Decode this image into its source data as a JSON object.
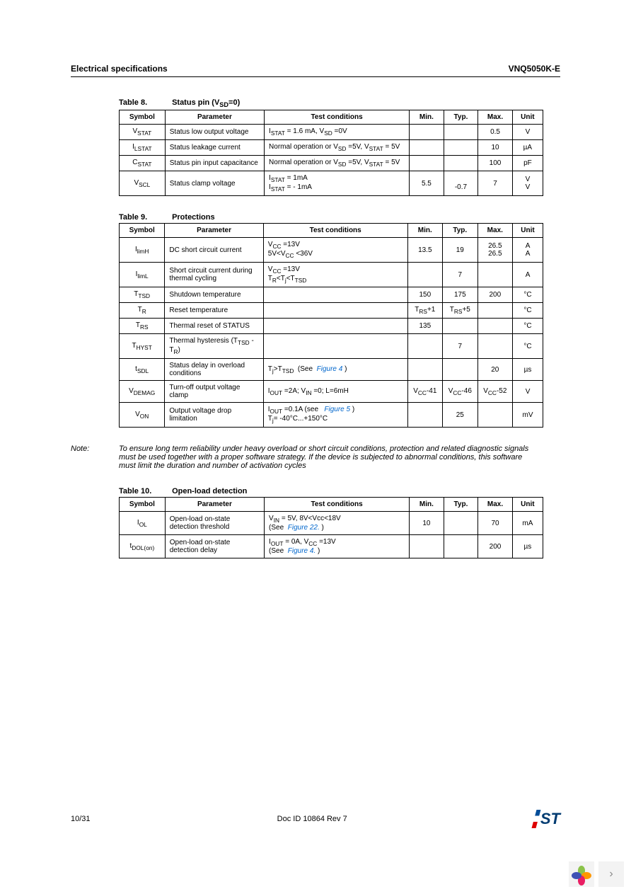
{
  "header": {
    "left": "Electrical specifications",
    "right": "VNQ5050K-E"
  },
  "tables": {
    "t8": {
      "num": "Table 8.",
      "title_html": "Status pin (V<sub>SD</sub>=0)",
      "headers": [
        "Symbol",
        "Parameter",
        "Test conditions",
        "Min.",
        "Typ.",
        "Max.",
        "Unit"
      ],
      "rows": [
        {
          "sym": "V<sub>STAT</sub>",
          "param": "Status low output voltage",
          "cond": "I<sub>STAT</sub> = 1.6 mA, V<sub>SD</sub> =0V",
          "min": "",
          "typ": "",
          "max": "0.5",
          "unit": "V"
        },
        {
          "sym": "I<sub>LSTAT</sub>",
          "param": "Status leakage current",
          "cond": "Normal operation or V<sub>SD</sub> =5V, V<sub>STAT</sub> = 5V",
          "min": "",
          "typ": "",
          "max": "10",
          "unit": "µA"
        },
        {
          "sym": "C<sub>STAT</sub>",
          "param": "Status pin input capacitance",
          "cond": "Normal operation or V<sub>SD</sub> =5V, V<sub>STAT</sub> = 5V",
          "min": "",
          "typ": "",
          "max": "100",
          "unit": "pF"
        },
        {
          "sym": "V<sub>SCL</sub>",
          "param": "Status clamp voltage",
          "cond": "I<sub>STAT</sub> = 1mA<br>I<sub>STAT</sub> = - 1mA",
          "min": "5.5",
          "typ": "<br>-0.7",
          "max": "7",
          "unit": "V<br>V"
        }
      ]
    },
    "t9": {
      "num": "Table 9.",
      "title": "Protections",
      "headers": [
        "Symbol",
        "Parameter",
        "Test conditions",
        "Min.",
        "Typ.",
        "Max.",
        "Unit"
      ],
      "rows": [
        {
          "sym": "I<sub>limH</sub>",
          "param": "DC short circuit current",
          "cond": "V<sub>CC</sub> =13V<br>5V&lt;V<sub>CC</sub> &lt;36V",
          "min": "13.5",
          "typ": "19",
          "max": "26.5<br>26.5",
          "unit": "A<br>A"
        },
        {
          "sym": "I<sub>limL</sub>",
          "param": "Short circuit current during thermal cycling",
          "cond": "V<sub>CC</sub> =13V<br>T<sub>R</sub>&lt;T<sub>j</sub>&lt;T<sub>TSD</sub>",
          "min": "",
          "typ": "7",
          "max": "",
          "unit": "A"
        },
        {
          "sym": "T<sub>TSD</sub>",
          "param": "Shutdown temperature",
          "cond": "",
          "min": "150",
          "typ": "175",
          "max": "200",
          "unit": "°C"
        },
        {
          "sym": "T<sub>R</sub>",
          "param": "Reset temperature",
          "cond": "",
          "min": "T<sub>RS</sub>+1",
          "typ": "T<sub>RS</sub>+5",
          "max": "",
          "unit": "°C"
        },
        {
          "sym": "T<sub>RS</sub>",
          "param": "Thermal reset of STATUS",
          "cond": "",
          "min": "135",
          "typ": "",
          "max": "",
          "unit": "°C"
        },
        {
          "sym": "T<sub>HYST</sub>",
          "param": "Thermal hysteresis (T<sub>TSD</sub> -T<sub>R</sub>)",
          "cond": "",
          "min": "",
          "typ": "7",
          "max": "",
          "unit": "°C"
        },
        {
          "sym": "t<sub>SDL</sub>",
          "param": "Status delay in overload conditions",
          "cond": "T<sub>j</sub>&gt;T<sub>TSD</sub> &nbsp;(See &nbsp;<span class=\"figref\">Figure 4</span>&nbsp;)",
          "min": "",
          "typ": "",
          "max": "20",
          "unit": "µs"
        },
        {
          "sym": "V<sub>DEMAG</sub>",
          "param": "Turn-off output voltage clamp",
          "cond": "I<sub>OUT</sub> =2A; V<sub>IN</sub> =0; L=6mH",
          "min": "V<sub>CC</sub>-41",
          "typ": "V<sub>CC</sub>-46",
          "max": "V<sub>CC</sub>-52",
          "unit": "V"
        },
        {
          "sym": "V<sub>ON</sub>",
          "param": "Output voltage drop limitation",
          "cond": "I<sub>OUT</sub> =0.1A (see &nbsp;&nbsp;<span class=\"figref\">Figure 5</span>&nbsp;)<br>T<sub>j</sub>= -40°C...+150°C",
          "min": "",
          "typ": "25",
          "max": "",
          "unit": "mV"
        }
      ]
    },
    "t10": {
      "num": "Table 10.",
      "title": "Open-load detection",
      "headers": [
        "Symbol",
        "Parameter",
        "Test conditions",
        "Min.",
        "Typ.",
        "Max.",
        "Unit"
      ],
      "rows": [
        {
          "sym": "I<sub>OL</sub>",
          "param": "Open-load on-state detection threshold",
          "cond": "V<sub>IN</sub> = 5V, 8V&lt;Vcc&lt;18V<br>(See &nbsp;<span class=\"figref\">Figure 22.</span>&nbsp;)",
          "min": "10",
          "typ": "",
          "max": "70",
          "unit": "mA"
        },
        {
          "sym": "t<sub>DOL(on)</sub>",
          "param": "Open-load on-state detection delay",
          "cond": "I<sub>OUT</sub> = 0A, V<sub>CC</sub> =13V<br>(See &nbsp;<span class=\"figref\">Figure 4.</span>&nbsp;)",
          "min": "",
          "typ": "",
          "max": "200",
          "unit": "µs"
        }
      ]
    }
  },
  "note": {
    "label": "Note:",
    "text": "To ensure long term reliability under heavy overload or short circuit conditions, protection and related diagnostic signals must be used together with a proper software strategy. If the device is subjected to abnormal conditions, this software must limit the duration and number of activation cycles"
  },
  "footer": {
    "page": "10/31",
    "docid": "Doc ID 10864 Rev 7"
  },
  "colors": {
    "link": "#0066cc",
    "logo": "#003b71"
  }
}
